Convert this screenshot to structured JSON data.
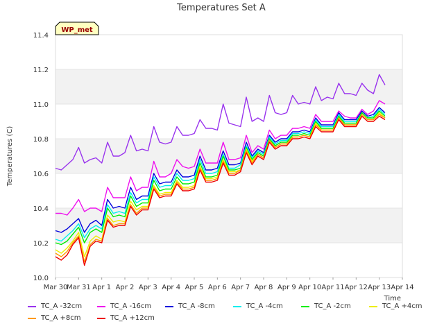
{
  "chart_data": {
    "type": "line",
    "title": "Temperatures Set A",
    "xlabel": "Time",
    "ylabel": "Temperatures (C)",
    "xlim": [
      0,
      15
    ],
    "ylim": [
      10.0,
      11.4
    ],
    "x_ticks": [
      "Mar 30",
      "Mar 31",
      "Apr 1",
      "Apr 2",
      "Apr 3",
      "Apr 4",
      "Apr 5",
      "Apr 6",
      "Apr 7",
      "Apr 8",
      "Apr 9",
      "Apr 10",
      "Apr 11",
      "Apr 12",
      "Apr 13",
      "Apr 14"
    ],
    "y_ticks": [
      "10.0",
      "10.2",
      "10.4",
      "10.6",
      "10.8",
      "11.0",
      "11.2",
      "11.4"
    ],
    "grid_bands": true,
    "legend_position": "bottom",
    "annotation": "WP_met",
    "x_days": [
      0.0,
      0.25,
      0.5,
      0.75,
      1.0,
      1.25,
      1.5,
      1.75,
      2.0,
      2.25,
      2.5,
      2.75,
      3.0,
      3.25,
      3.5,
      3.75,
      4.0,
      4.25,
      4.5,
      4.75,
      5.0,
      5.25,
      5.5,
      5.75,
      6.0,
      6.25,
      6.5,
      6.75,
      7.0,
      7.25,
      7.5,
      7.75,
      8.0,
      8.25,
      8.5,
      8.75,
      9.0,
      9.25,
      9.5,
      9.75,
      10.0,
      10.25,
      10.5,
      10.75,
      11.0,
      11.25,
      11.5,
      11.75,
      12.0,
      12.25,
      12.5,
      12.75,
      13.0,
      13.25,
      13.5,
      13.75,
      14.0,
      14.25
    ],
    "series": [
      {
        "name": "TC_A -32cm",
        "color": "#9933ee",
        "values": [
          10.63,
          10.62,
          10.65,
          10.68,
          10.75,
          10.66,
          10.68,
          10.69,
          10.66,
          10.78,
          10.7,
          10.7,
          10.72,
          10.82,
          10.73,
          10.74,
          10.73,
          10.87,
          10.78,
          10.77,
          10.78,
          10.87,
          10.82,
          10.82,
          10.83,
          10.91,
          10.86,
          10.86,
          10.85,
          11.0,
          10.89,
          10.88,
          10.87,
          11.04,
          10.9,
          10.92,
          10.9,
          11.05,
          10.95,
          10.94,
          10.95,
          11.05,
          11.0,
          11.01,
          11.0,
          11.1,
          11.02,
          11.04,
          11.03,
          11.12,
          11.06,
          11.06,
          11.05,
          11.12,
          11.08,
          11.06,
          11.17,
          11.11
        ]
      },
      {
        "name": "TC_A -16cm",
        "color": "#ee11ee",
        "values": [
          10.37,
          10.37,
          10.36,
          10.4,
          10.45,
          10.38,
          10.4,
          10.4,
          10.38,
          10.52,
          10.46,
          10.46,
          10.46,
          10.58,
          10.5,
          10.52,
          10.52,
          10.67,
          10.58,
          10.58,
          10.6,
          10.68,
          10.64,
          10.63,
          10.64,
          10.74,
          10.66,
          10.66,
          10.66,
          10.78,
          10.68,
          10.68,
          10.69,
          10.82,
          10.72,
          10.76,
          10.74,
          10.85,
          10.8,
          10.82,
          10.82,
          10.86,
          10.86,
          10.87,
          10.86,
          10.94,
          10.9,
          10.9,
          10.9,
          10.96,
          10.93,
          10.92,
          10.92,
          10.97,
          10.94,
          10.96,
          11.02,
          11.0
        ]
      },
      {
        "name": "TC_A -8cm",
        "color": "#0000dd",
        "values": [
          10.27,
          10.26,
          10.28,
          10.31,
          10.34,
          10.26,
          10.31,
          10.33,
          10.3,
          10.45,
          10.4,
          10.41,
          10.4,
          10.52,
          10.45,
          10.47,
          10.47,
          10.6,
          10.54,
          10.55,
          10.55,
          10.62,
          10.58,
          10.58,
          10.59,
          10.7,
          10.62,
          10.62,
          10.63,
          10.73,
          10.65,
          10.65,
          10.66,
          10.78,
          10.7,
          10.74,
          10.72,
          10.82,
          10.78,
          10.8,
          10.8,
          10.84,
          10.84,
          10.85,
          10.84,
          10.92,
          10.88,
          10.88,
          10.88,
          10.95,
          10.91,
          10.91,
          10.91,
          10.96,
          10.93,
          10.94,
          10.98,
          10.95
        ]
      },
      {
        "name": "TC_A -4cm",
        "color": "#00eeee",
        "values": [
          10.22,
          10.21,
          10.24,
          10.27,
          10.31,
          10.23,
          10.28,
          10.3,
          10.28,
          10.42,
          10.37,
          10.38,
          10.37,
          10.49,
          10.43,
          10.45,
          10.45,
          10.58,
          10.52,
          10.53,
          10.53,
          10.6,
          10.56,
          10.56,
          10.57,
          10.68,
          10.6,
          10.6,
          10.61,
          10.71,
          10.63,
          10.63,
          10.65,
          10.76,
          10.69,
          10.73,
          10.71,
          10.81,
          10.77,
          10.79,
          10.79,
          10.83,
          10.83,
          10.84,
          10.83,
          10.91,
          10.87,
          10.87,
          10.87,
          10.94,
          10.9,
          10.9,
          10.9,
          10.95,
          10.92,
          10.93,
          10.97,
          10.94
        ]
      },
      {
        "name": "TC_A -2cm",
        "color": "#00ee00",
        "values": [
          10.2,
          10.19,
          10.21,
          10.25,
          10.29,
          10.2,
          10.26,
          10.28,
          10.26,
          10.4,
          10.35,
          10.36,
          10.35,
          10.47,
          10.41,
          10.43,
          10.43,
          10.56,
          10.5,
          10.51,
          10.51,
          10.58,
          10.54,
          10.54,
          10.55,
          10.66,
          10.58,
          10.58,
          10.59,
          10.7,
          10.62,
          10.62,
          10.63,
          10.75,
          10.68,
          10.72,
          10.7,
          10.8,
          10.76,
          10.78,
          10.78,
          10.82,
          10.82,
          10.83,
          10.82,
          10.9,
          10.86,
          10.86,
          10.86,
          10.93,
          10.89,
          10.89,
          10.89,
          10.95,
          10.92,
          10.92,
          10.96,
          10.93
        ]
      },
      {
        "name": "TC_A +4cm",
        "color": "#eeee00",
        "values": [
          10.16,
          10.14,
          10.17,
          10.21,
          10.26,
          10.12,
          10.21,
          10.24,
          10.22,
          10.36,
          10.32,
          10.33,
          10.32,
          10.44,
          10.39,
          10.41,
          10.41,
          10.53,
          10.48,
          10.49,
          10.49,
          10.56,
          10.52,
          10.52,
          10.53,
          10.64,
          10.57,
          10.57,
          10.58,
          10.68,
          10.61,
          10.61,
          10.62,
          10.74,
          10.67,
          10.71,
          10.69,
          10.79,
          10.75,
          10.77,
          10.77,
          10.81,
          10.81,
          10.82,
          10.81,
          10.89,
          10.85,
          10.85,
          10.85,
          10.92,
          10.88,
          10.88,
          10.88,
          10.94,
          10.91,
          10.91,
          10.95,
          10.92
        ]
      },
      {
        "name": "TC_A +8cm",
        "color": "#ff9900",
        "values": [
          10.14,
          10.12,
          10.15,
          10.2,
          10.24,
          10.09,
          10.19,
          10.22,
          10.21,
          10.34,
          10.3,
          10.31,
          10.31,
          10.42,
          10.37,
          10.4,
          10.4,
          10.52,
          10.47,
          10.48,
          10.48,
          10.55,
          10.51,
          10.51,
          10.52,
          10.63,
          10.56,
          10.56,
          10.57,
          10.67,
          10.6,
          10.6,
          10.62,
          10.73,
          10.66,
          10.71,
          10.69,
          10.79,
          10.75,
          10.77,
          10.77,
          10.81,
          10.81,
          10.82,
          10.81,
          10.88,
          10.85,
          10.85,
          10.85,
          10.92,
          10.88,
          10.88,
          10.88,
          10.94,
          10.91,
          10.91,
          10.94,
          10.92
        ]
      },
      {
        "name": "TC_A +12cm",
        "color": "#ee0000",
        "values": [
          10.12,
          10.1,
          10.13,
          10.19,
          10.23,
          10.07,
          10.18,
          10.21,
          10.2,
          10.33,
          10.29,
          10.3,
          10.3,
          10.41,
          10.36,
          10.39,
          10.39,
          10.51,
          10.46,
          10.47,
          10.47,
          10.54,
          10.5,
          10.5,
          10.51,
          10.62,
          10.55,
          10.55,
          10.56,
          10.66,
          10.59,
          10.59,
          10.61,
          10.72,
          10.65,
          10.7,
          10.68,
          10.78,
          10.74,
          10.76,
          10.76,
          10.8,
          10.8,
          10.81,
          10.8,
          10.87,
          10.84,
          10.84,
          10.84,
          10.91,
          10.87,
          10.87,
          10.87,
          10.93,
          10.9,
          10.9,
          10.93,
          10.91
        ]
      }
    ]
  }
}
